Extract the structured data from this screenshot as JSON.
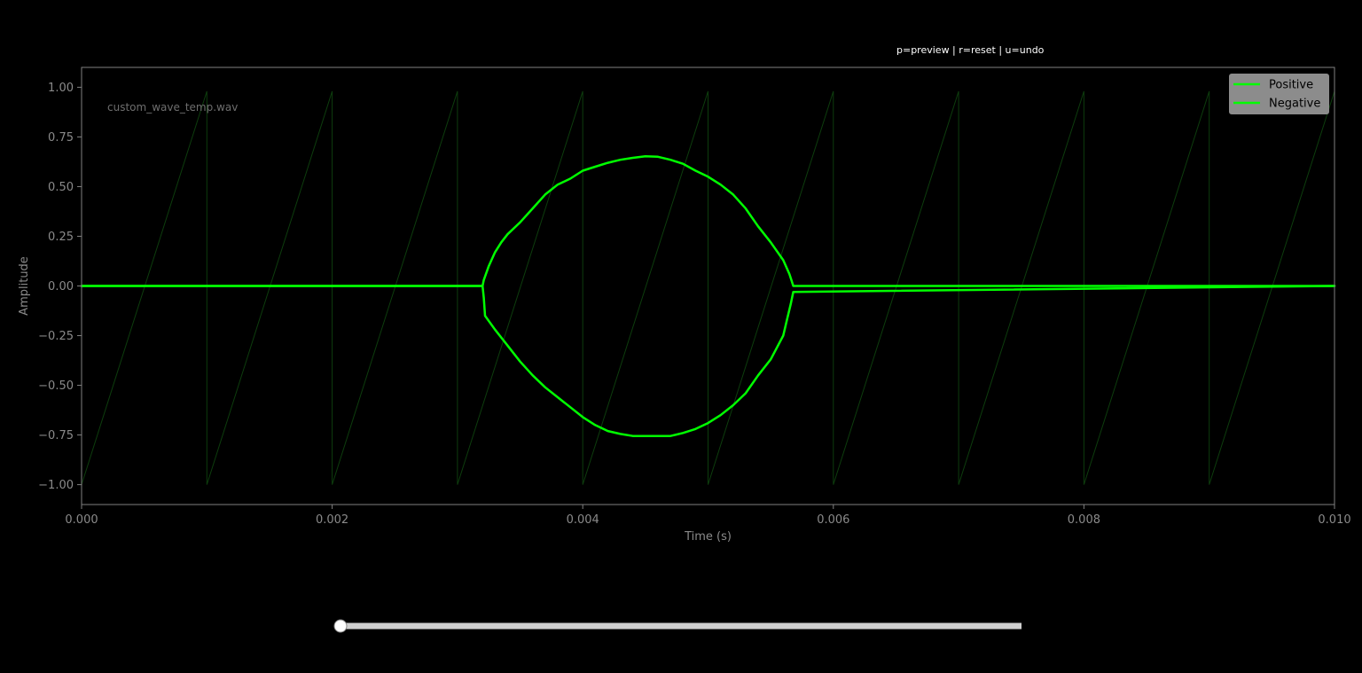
{
  "hint": "p=preview | r=reset | u=undo",
  "filename": "custom_wave_temp.wav",
  "colors": {
    "background": "#000000",
    "frame": "#808080",
    "waveform": "#00ff00",
    "guide": "#0d3d0d",
    "legend_bg": "#8c8c8c",
    "slider_track": "#d0d0d0",
    "slider_thumb": "#ffffff"
  },
  "chart_data": {
    "type": "line",
    "title": "",
    "xlabel": "Time (s)",
    "ylabel": "Amplitude",
    "xlim": [
      0,
      0.01
    ],
    "ylim": [
      -1.1,
      1.1
    ],
    "x_ticks": [
      0,
      0.002,
      0.004,
      0.006,
      0.008,
      0.01
    ],
    "x_tick_labels": [
      "0.000",
      "0.002",
      "0.004",
      "0.006",
      "0.008",
      "0.010"
    ],
    "y_ticks": [
      1,
      0.75,
      0.5,
      0.25,
      0,
      -0.25,
      -0.5,
      -0.75,
      -1
    ],
    "y_tick_labels": [
      "1.00",
      "0.75",
      "0.50",
      "0.25",
      "0.00",
      "−0.25",
      "−0.50",
      "−0.75",
      "−1.00"
    ],
    "grid": false,
    "legend": {
      "placement": "top-right",
      "entries": [
        "Positive",
        "Negative"
      ]
    },
    "guide_wave": {
      "shape": "sawtooth",
      "period": 0.001,
      "phase": 0.0,
      "min": -1.0,
      "max": 0.98
    },
    "series": [
      {
        "name": "Positive",
        "x": [
          0,
          0.0032,
          0.00321,
          0.00325,
          0.0033,
          0.00335,
          0.0034,
          0.0035,
          0.0036,
          0.0037,
          0.0038,
          0.0039,
          0.004,
          0.0041,
          0.0042,
          0.0043,
          0.0044,
          0.0045,
          0.0046,
          0.0047,
          0.0048,
          0.0049,
          0.005,
          0.0051,
          0.0052,
          0.0053,
          0.0054,
          0.0055,
          0.0056,
          0.00565,
          0.00567,
          0.00568,
          0.01
        ],
        "y": [
          0,
          0,
          0.03,
          0.1,
          0.17,
          0.22,
          0.26,
          0.32,
          0.39,
          0.46,
          0.51,
          0.54,
          0.58,
          0.6,
          0.62,
          0.635,
          0.645,
          0.653,
          0.65,
          0.635,
          0.615,
          0.58,
          0.55,
          0.51,
          0.46,
          0.39,
          0.3,
          0.22,
          0.13,
          0.06,
          0.02,
          0,
          0
        ]
      },
      {
        "name": "Negative",
        "x": [
          0,
          0.0032,
          0.00321,
          0.00322,
          0.0033,
          0.0034,
          0.0035,
          0.0036,
          0.0037,
          0.0038,
          0.0039,
          0.004,
          0.0041,
          0.0042,
          0.0043,
          0.0044,
          0.0045,
          0.0046,
          0.0047,
          0.0048,
          0.0049,
          0.005,
          0.0051,
          0.0052,
          0.0053,
          0.0054,
          0.0055,
          0.0056,
          0.00563,
          0.00566,
          0.00568,
          0.01
        ],
        "y": [
          0,
          0,
          -0.06,
          -0.15,
          -0.22,
          -0.3,
          -0.38,
          -0.45,
          -0.51,
          -0.56,
          -0.61,
          -0.66,
          -0.7,
          -0.73,
          -0.745,
          -0.755,
          -0.755,
          -0.755,
          -0.755,
          -0.74,
          -0.72,
          -0.69,
          -0.65,
          -0.6,
          -0.54,
          -0.45,
          -0.37,
          -0.25,
          -0.17,
          -0.09,
          -0.03,
          0
        ]
      }
    ]
  },
  "slider": {
    "min": 0,
    "max": 1,
    "value": 0
  }
}
